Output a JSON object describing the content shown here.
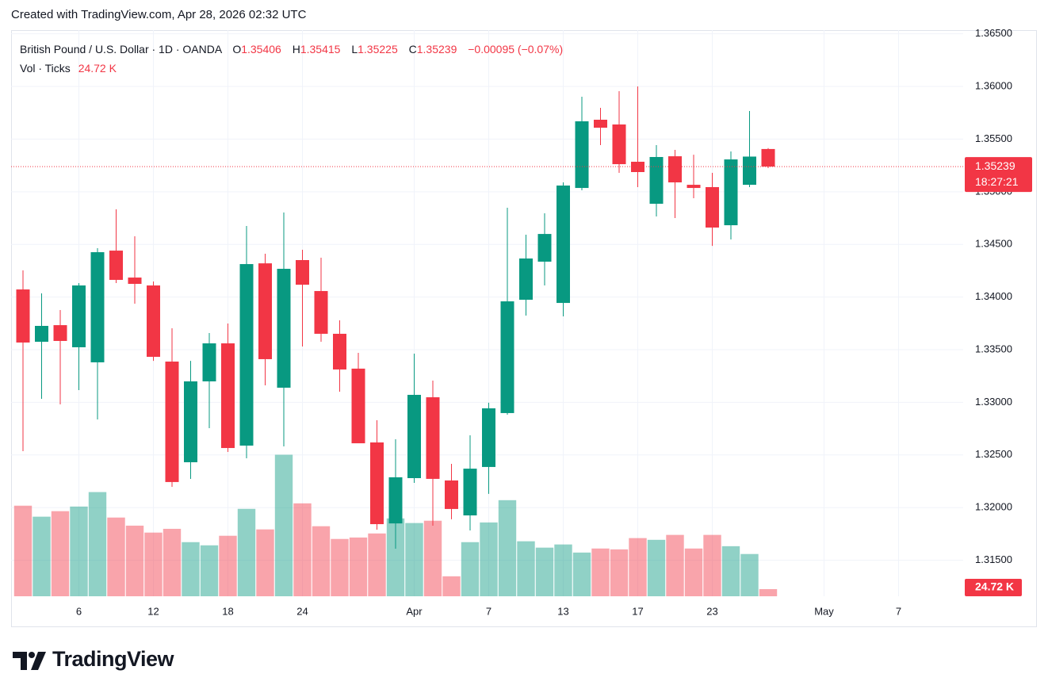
{
  "watermark": "Created with TradingView.com, Apr 28, 2026 02:32 UTC",
  "logo": "TradingView",
  "chart_data": {
    "type": "candlestick",
    "header": {
      "symbol": "British Pound / U.S. Dollar · 1D · OANDA",
      "ohlc_labels": [
        "O",
        "H",
        "L",
        "C"
      ],
      "change": "−0.00095 (−0.07%)",
      "volume_label": "Vol · Ticks"
    },
    "countdown": "18:27:21",
    "categories": [
      null,
      null,
      null,
      "6",
      null,
      null,
      null,
      "12",
      null,
      null,
      null,
      "18",
      null,
      null,
      null,
      "24",
      null,
      null,
      null,
      null,
      null,
      "Apr",
      null,
      null,
      null,
      "7",
      null,
      null,
      null,
      "13",
      null,
      null,
      null,
      "17",
      null,
      null,
      null,
      "23",
      null,
      null,
      null,
      null,
      null,
      "May",
      null,
      null,
      null,
      "7"
    ],
    "open": [
      1.34072,
      1.33575,
      1.33733,
      1.33523,
      1.3338,
      1.34441,
      1.34185,
      1.3411,
      1.33387,
      1.32431,
      1.33199,
      1.3356,
      1.32589,
      1.3432,
      1.33139,
      1.34351,
      1.34057,
      1.33651,
      1.3332,
      1.32619,
      1.3185,
      1.3228,
      1.33048,
      1.32258,
      1.31926,
      1.32386,
      1.32898,
      1.33974,
      1.34336,
      1.33944,
      1.35036,
      1.35684,
      1.35639,
      1.35285,
      1.34886,
      1.35337,
      1.35066,
      1.35044,
      1.34682,
      1.35066,
      1.35406,
      null,
      null,
      null,
      null,
      null,
      null,
      null
    ],
    "high": [
      1.34253,
      1.34035,
      1.33877,
      1.34133,
      1.34464,
      1.34833,
      1.34577,
      1.34148,
      1.33703,
      1.33394,
      1.33658,
      1.33749,
      1.34675,
      1.34411,
      1.34803,
      1.34449,
      1.34374,
      1.33779,
      1.3347,
      1.3283,
      1.32649,
      1.33462,
      1.33206,
      1.32416,
      1.32687,
      1.32996,
      1.34848,
      1.34592,
      1.34795,
      1.35089,
      1.35902,
      1.35797,
      1.35955,
      1.36,
      1.35443,
      1.35398,
      1.35352,
      1.35179,
      1.35383,
      1.35767,
      1.35415,
      null,
      null,
      null,
      null,
      null,
      null,
      null
    ],
    "low": [
      1.32536,
      1.33033,
      1.3298,
      1.33116,
      1.32837,
      1.34133,
      1.33937,
      1.33394,
      1.32197,
      1.32273,
      1.32755,
      1.32529,
      1.32468,
      1.33161,
      1.32581,
      1.3353,
      1.33575,
      1.33101,
      1.32611,
      1.31791,
      1.3161,
      1.32235,
      1.31828,
      1.31889,
      1.31783,
      1.3213,
      1.32883,
      1.33824,
      1.3411,
      1.33816,
      1.35014,
      1.35443,
      1.35179,
      1.35044,
      1.34765,
      1.3475,
      1.34938,
      1.34486,
      1.34547,
      1.35044,
      1.35225,
      null,
      null,
      null,
      null,
      null,
      null,
      null
    ],
    "close": [
      1.33568,
      1.33726,
      1.33583,
      1.3411,
      1.34426,
      1.34163,
      1.34125,
      1.33432,
      1.32243,
      1.33199,
      1.3356,
      1.32566,
      1.34313,
      1.3341,
      1.34268,
      1.34117,
      1.33651,
      1.33312,
      1.32611,
      1.31843,
      1.32288,
      1.33071,
      1.32273,
      1.31987,
      1.3237,
      1.32943,
      1.33959,
      1.34366,
      1.34599,
      1.35059,
      1.35669,
      1.35608,
      1.35262,
      1.35187,
      1.3533,
      1.35089,
      1.35036,
      1.3466,
      1.35307,
      1.35334,
      1.35239,
      null,
      null,
      null,
      null,
      null,
      null,
      null
    ],
    "volume": [
      313000,
      275000,
      294000,
      310000,
      360000,
      272000,
      244000,
      220000,
      233000,
      187000,
      176000,
      209000,
      302000,
      231000,
      489000,
      321000,
      242000,
      198000,
      203000,
      217000,
      269000,
      253000,
      261000,
      69000,
      187000,
      255000,
      332000,
      190000,
      168000,
      179000,
      151000,
      165000,
      162000,
      201000,
      195000,
      212000,
      165000,
      212000,
      173000,
      146000,
      24720,
      null,
      null,
      null,
      null,
      null,
      null,
      null
    ],
    "volume_value_labels": [
      null,
      null,
      null,
      null,
      null,
      null,
      null,
      null,
      null,
      null,
      null,
      null,
      null,
      null,
      null,
      null,
      null,
      null,
      null,
      null,
      null,
      null,
      null,
      null,
      null,
      null,
      null,
      null,
      null,
      null,
      null,
      null,
      null,
      null,
      null,
      null,
      null,
      null,
      null,
      null,
      "24.72 K",
      null,
      null,
      null,
      null,
      null,
      null,
      null
    ],
    "up_color": "#089981",
    "down_color": "#f23645",
    "ylim": [
      1.31158,
      1.36535
    ],
    "yticks": [
      {
        "value": 1.315,
        "label": "1.31500"
      },
      {
        "value": 1.32,
        "label": "1.32000"
      },
      {
        "value": 1.325,
        "label": "1.32500"
      },
      {
        "value": 1.33,
        "label": "1.33000"
      },
      {
        "value": 1.335,
        "label": "1.33500"
      },
      {
        "value": 1.34,
        "label": "1.34000"
      },
      {
        "value": 1.345,
        "label": "1.34500"
      },
      {
        "value": 1.35,
        "label": "1.35000"
      },
      {
        "value": 1.355,
        "label": "1.35500"
      },
      {
        "value": 1.36,
        "label": "1.36000"
      },
      {
        "value": 1.365,
        "label": "1.36500"
      }
    ],
    "grid": true
  }
}
